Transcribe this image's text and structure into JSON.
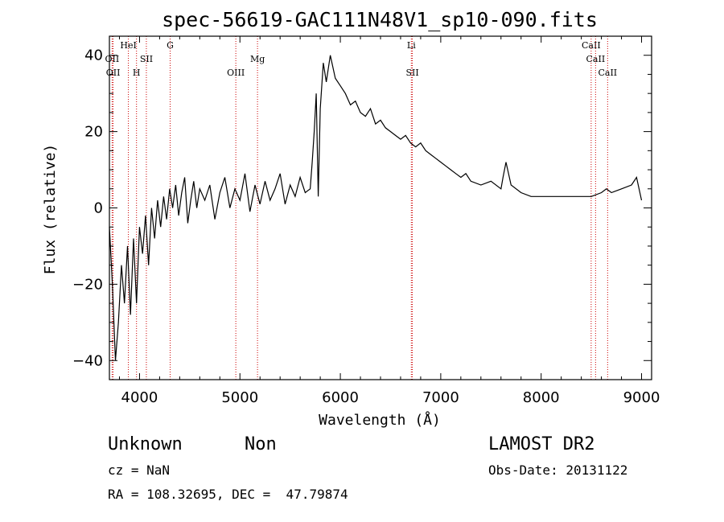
{
  "chart_data": {
    "type": "line",
    "title": "spec-56619-GAC111N48V1_sp10-090.fits",
    "xlabel": "Wavelength (Å)",
    "ylabel": "Flux (relative)",
    "xlim": [
      3700,
      9100
    ],
    "ylim": [
      -45,
      45
    ],
    "xticks": [
      4000,
      5000,
      6000,
      7000,
      8000,
      9000
    ],
    "yticks": [
      -40,
      -20,
      0,
      20,
      40
    ],
    "grid": false,
    "spectrum_color": "#000000",
    "line_marker_color": "#cc0000",
    "spectrum": {
      "x": [
        3700,
        3730,
        3760,
        3790,
        3820,
        3850,
        3880,
        3910,
        3940,
        3970,
        4000,
        4030,
        4060,
        4090,
        4120,
        4150,
        4180,
        4210,
        4240,
        4270,
        4300,
        4330,
        4360,
        4390,
        4420,
        4450,
        4480,
        4510,
        4540,
        4570,
        4600,
        4650,
        4700,
        4750,
        4800,
        4850,
        4900,
        4950,
        5000,
        5050,
        5100,
        5150,
        5200,
        5250,
        5300,
        5350,
        5400,
        5450,
        5500,
        5550,
        5600,
        5650,
        5700,
        5720,
        5740,
        5760,
        5780,
        5800,
        5830,
        5860,
        5900,
        5950,
        6000,
        6050,
        6100,
        6150,
        6200,
        6250,
        6300,
        6350,
        6400,
        6450,
        6500,
        6550,
        6600,
        6650,
        6700,
        6750,
        6800,
        6850,
        6900,
        6950,
        7000,
        7050,
        7100,
        7150,
        7200,
        7250,
        7300,
        7400,
        7500,
        7600,
        7620,
        7650,
        7700,
        7800,
        7900,
        8000,
        8100,
        8200,
        8300,
        8400,
        8500,
        8600,
        8650,
        8700,
        8800,
        8900,
        8950,
        9000
      ],
      "y": [
        -5,
        -20,
        -40,
        -30,
        -15,
        -25,
        -10,
        -28,
        -8,
        -25,
        -5,
        -12,
        -2,
        -15,
        0,
        -8,
        2,
        -5,
        3,
        -3,
        5,
        0,
        6,
        -2,
        4,
        8,
        -4,
        2,
        7,
        0,
        5,
        2,
        6,
        -3,
        4,
        8,
        0,
        5,
        2,
        9,
        -1,
        6,
        1,
        7,
        2,
        5,
        9,
        1,
        6,
        3,
        8,
        4,
        5,
        12,
        20,
        30,
        3,
        26,
        38,
        33,
        40,
        34,
        32,
        30,
        27,
        28,
        25,
        24,
        26,
        22,
        23,
        21,
        20,
        19,
        18,
        19,
        17,
        16,
        17,
        15,
        14,
        13,
        12,
        11,
        10,
        9,
        8,
        9,
        7,
        6,
        7,
        5,
        8,
        12,
        6,
        4,
        3,
        3,
        3,
        3,
        3,
        3,
        3,
        4,
        5,
        4,
        5,
        6,
        8,
        2
      ]
    },
    "emission_lines": [
      {
        "label": "OII",
        "x": 3727,
        "row": 1
      },
      {
        "label": "OII",
        "x": 3737,
        "row": 2
      },
      {
        "label": "HeI",
        "x": 3889,
        "row": 0
      },
      {
        "label": "H",
        "x": 3970,
        "row": 2
      },
      {
        "label": "SII",
        "x": 4068,
        "row": 1
      },
      {
        "label": "G",
        "x": 4305,
        "row": 0
      },
      {
        "label": "OIII",
        "x": 4959,
        "row": 2
      },
      {
        "label": "Mg",
        "x": 5175,
        "row": 1
      },
      {
        "label": "Li",
        "x": 6707,
        "row": 0
      },
      {
        "label": "SII",
        "x": 6717,
        "row": 2
      },
      {
        "label": "CaII",
        "x": 8498,
        "row": 0
      },
      {
        "label": "CaII",
        "x": 8542,
        "row": 1
      },
      {
        "label": "CaII",
        "x": 8662,
        "row": 2
      }
    ]
  },
  "info": {
    "class": "Unknown",
    "subclass": "Non",
    "survey": "LAMOST DR2",
    "redshift": "cz = NaN",
    "obs_date": "Obs-Date: 20131122",
    "coordinates": "RA = 108.32695, DEC =  47.79874"
  }
}
